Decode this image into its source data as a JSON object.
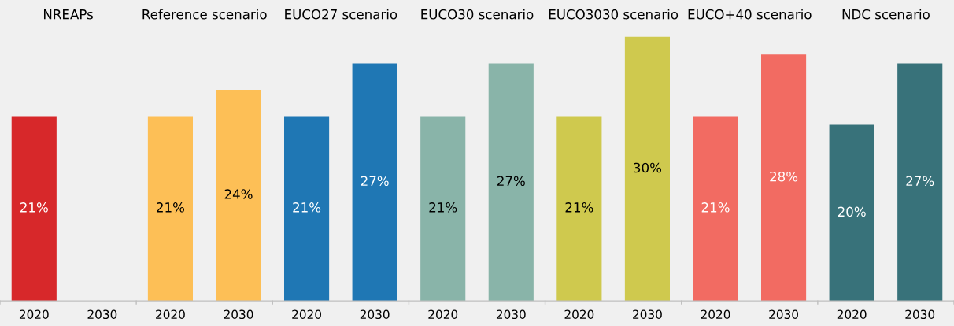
{
  "chart_data": {
    "type": "bar",
    "categories": [
      "2020",
      "2030",
      "2020",
      "2030",
      "2020",
      "2030",
      "2020",
      "2030",
      "2020",
      "2030",
      "2020",
      "2030",
      "2020",
      "2030"
    ],
    "values": [
      21,
      null,
      21,
      24,
      21,
      27,
      21,
      27,
      21,
      30,
      21,
      28,
      20,
      27
    ],
    "value_labels": [
      "21%",
      null,
      "21%",
      "24%",
      "21%",
      "27%",
      "21%",
      "27%",
      "21%",
      "30%",
      "21%",
      "28%",
      "20%",
      "27%"
    ],
    "colors": [
      "#d7282a",
      "#d7282a",
      "#fdbf56",
      "#fdbf56",
      "#1f77b4",
      "#1f77b4",
      "#89b4a9",
      "#89b4a9",
      "#cfc94e",
      "#cfc94e",
      "#f26b62",
      "#f26b62",
      "#38727a",
      "#38727a"
    ],
    "annotations": [
      "NREAPs",
      "Reference scenario",
      "EUCO27 scenario",
      "EUCO30 scenario",
      "EUCO3030 scenario",
      "EUCO+40 scenario",
      "NDC scenario"
    ],
    "grid": false,
    "legend": false
  }
}
